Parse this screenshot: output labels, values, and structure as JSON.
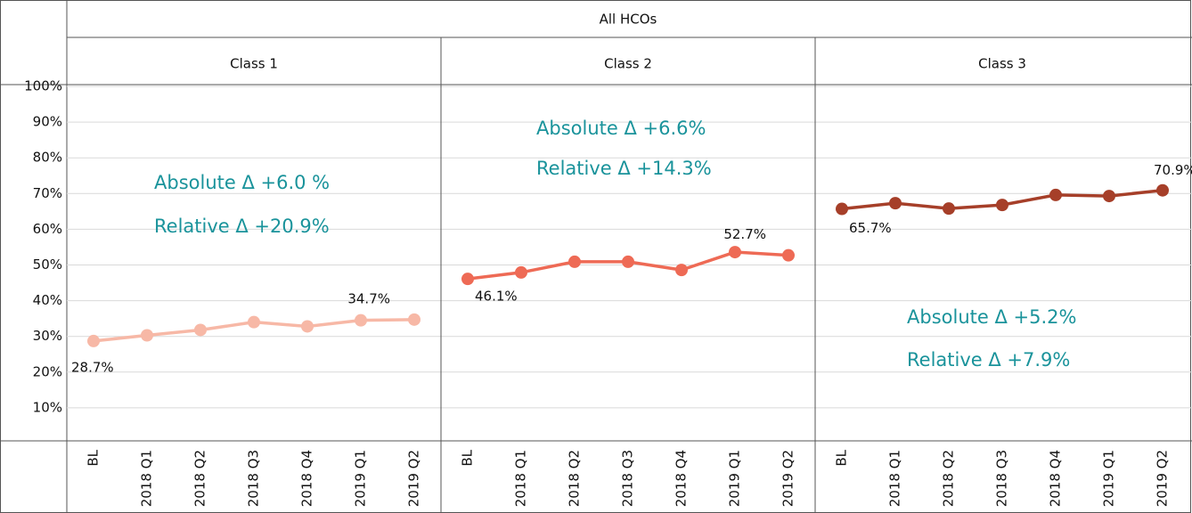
{
  "chart_data": {
    "type": "line",
    "title": "All HCOs",
    "ylim": [
      0,
      100
    ],
    "grid": true,
    "yticks": [
      {
        "value": 10,
        "label": "10%"
      },
      {
        "value": 20,
        "label": "20%"
      },
      {
        "value": 30,
        "label": "30%"
      },
      {
        "value": 40,
        "label": "40%"
      },
      {
        "value": 50,
        "label": "50%"
      },
      {
        "value": 60,
        "label": "60%"
      },
      {
        "value": 70,
        "label": "70%"
      },
      {
        "value": 80,
        "label": "80%"
      },
      {
        "value": 90,
        "label": "90%"
      },
      {
        "value": 100,
        "label": "100%"
      }
    ],
    "panels": [
      {
        "title": "Class 1",
        "color": "#f7b8a6",
        "categories": [
          "BL",
          "2018 Q1",
          "2018 Q2",
          "2018 Q3",
          "2018 Q4",
          "2019 Q1",
          "2019 Q2"
        ],
        "values": [
          28.7,
          30.3,
          31.8,
          34.0,
          32.8,
          34.5,
          34.7
        ],
        "value_labels": [
          "28.7%",
          null,
          null,
          null,
          null,
          null,
          "34.7%"
        ],
        "annotations": [
          "Absolute Δ +6.0 %",
          "Relative Δ +20.9%"
        ]
      },
      {
        "title": "Class 2",
        "color": "#ee6a55",
        "categories": [
          "BL",
          "2018 Q1",
          "2018 Q2",
          "2018 Q3",
          "2018 Q4",
          "2019 Q1",
          "2019 Q2"
        ],
        "values": [
          46.1,
          47.9,
          50.9,
          50.9,
          48.6,
          53.6,
          52.7
        ],
        "value_labels": [
          "46.1%",
          null,
          null,
          null,
          null,
          null,
          "52.7%"
        ],
        "annotations": [
          "Absolute Δ +6.6%",
          "Relative Δ +14.3%"
        ]
      },
      {
        "title": "Class 3",
        "color": "#a63f29",
        "categories": [
          "BL",
          "2018 Q1",
          "2018 Q2",
          "2018 Q3",
          "2018 Q4",
          "2019 Q1",
          "2019 Q2"
        ],
        "values": [
          65.7,
          67.3,
          65.8,
          66.8,
          69.6,
          69.3,
          70.9
        ],
        "value_labels": [
          "65.7%",
          null,
          null,
          null,
          null,
          null,
          "70.9%"
        ],
        "annotations": [
          "Absolute Δ +5.2%",
          "Relative Δ +7.9%"
        ]
      }
    ]
  }
}
